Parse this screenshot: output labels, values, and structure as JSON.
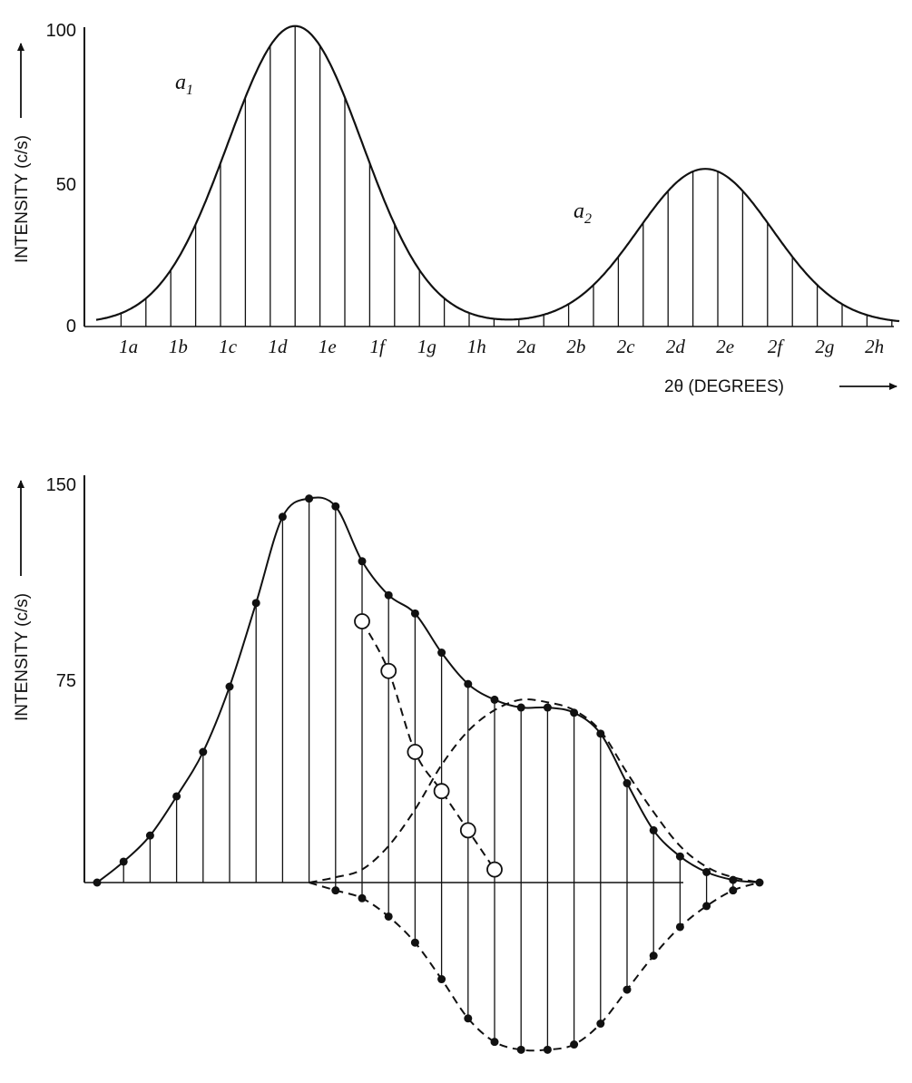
{
  "chart_data": [
    {
      "type": "line",
      "ylabel": "INTENSITY (c/s)",
      "xlabel": "2θ (DEGREES)",
      "ylim": [
        0,
        100
      ],
      "yticks": [
        "0",
        "50",
        "100"
      ],
      "categories": [
        "1a",
        "1b",
        "1c",
        "1d",
        "1e",
        "1f",
        "1g",
        "1h",
        "2a",
        "2b",
        "2c",
        "2d",
        "2e",
        "2f",
        "2g",
        "2h"
      ],
      "peak_labels": [
        {
          "base": "a",
          "sub": "1"
        },
        {
          "base": "a",
          "sub": "2"
        }
      ],
      "peaks": [
        {
          "name": "a1",
          "center": 8,
          "height": 100,
          "width": 2.7
        },
        {
          "name": "a2",
          "center": 24.5,
          "height": 52,
          "width": 2.7
        }
      ],
      "baseline": 1,
      "series": [
        {
          "x": [
            0,
            1,
            2,
            3,
            4,
            5,
            6,
            7,
            8,
            9,
            10,
            11,
            12,
            13,
            14,
            15,
            16,
            17,
            18,
            19,
            20,
            21,
            22,
            23,
            24,
            25,
            26,
            27,
            28,
            29,
            30,
            31,
            32
          ],
          "values": [
            1,
            7,
            16,
            29,
            50,
            76,
            93,
            100,
            95,
            84,
            61,
            33,
            16,
            7,
            4,
            3,
            3,
            4,
            7,
            13,
            22,
            32,
            42,
            49,
            52,
            50,
            44,
            34,
            22,
            13,
            7,
            3,
            2
          ]
        }
      ]
    },
    {
      "type": "line",
      "ylabel": "INTENSITY (c/s)",
      "ylim": [
        -65,
        150
      ],
      "yticks": [
        "75",
        "150"
      ],
      "series": [
        {
          "style": "solid-dots",
          "x": [
            0,
            1,
            2,
            3,
            4,
            5,
            6,
            7,
            8,
            9,
            10,
            11,
            12,
            13,
            14,
            15,
            16,
            17,
            18,
            19,
            20,
            21,
            22,
            23,
            24,
            25
          ],
          "values": [
            0,
            8,
            18,
            33,
            50,
            75,
            107,
            140,
            147,
            144,
            123,
            110,
            103,
            88,
            76,
            70,
            67,
            67,
            65,
            57,
            38,
            20,
            10,
            4,
            1,
            0
          ]
        },
        {
          "style": "dashed-circles",
          "x": [
            10,
            11,
            12,
            13,
            14,
            15
          ],
          "values": [
            100,
            81,
            50,
            35,
            20,
            5
          ]
        },
        {
          "style": "dashed",
          "x": [
            8,
            9,
            10,
            11,
            12,
            13,
            14,
            15,
            16,
            17,
            18,
            19,
            20,
            21,
            22,
            23,
            24,
            25
          ],
          "values": [
            0,
            2,
            5,
            14,
            28,
            45,
            58,
            66,
            70,
            69,
            66,
            58,
            42,
            27,
            14,
            6,
            2,
            0
          ]
        },
        {
          "style": "dashed-dots-negative",
          "x": [
            8,
            9,
            10,
            11,
            12,
            13,
            14,
            15,
            16,
            17,
            18,
            19,
            20,
            21,
            22,
            23,
            24,
            25
          ],
          "values": [
            0,
            -3,
            -6,
            -13,
            -23,
            -37,
            -52,
            -61,
            -64,
            -64,
            -62,
            -54,
            -41,
            -28,
            -17,
            -9,
            -3,
            0
          ]
        }
      ]
    }
  ]
}
